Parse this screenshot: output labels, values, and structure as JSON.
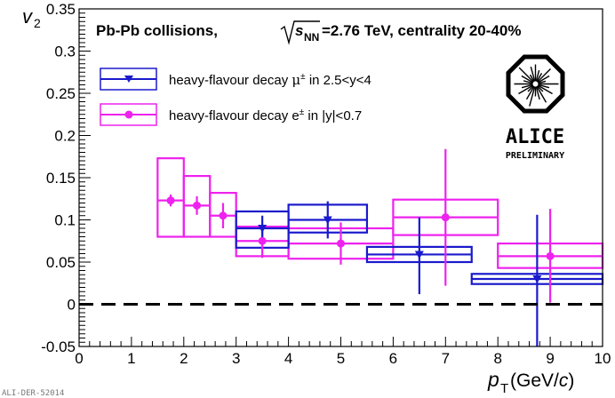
{
  "chart_data": {
    "type": "scatter",
    "title_parts": {
      "prefix": "Pb-Pb collisions,",
      "sqrt": "s",
      "sub": "NN",
      "suffix": "=2.76 TeV, centrality 20-40%"
    },
    "xlabel": {
      "symbol": "p",
      "sub": "T",
      "unit_open": " (GeV/",
      "unit_c": "c",
      "unit_close": ")"
    },
    "ylabel": {
      "symbol": "v",
      "sub": "2"
    },
    "xlim": [
      0,
      10
    ],
    "ylim": [
      -0.05,
      0.35
    ],
    "xticks": [
      0,
      1,
      2,
      3,
      4,
      5,
      6,
      7,
      8,
      9,
      10
    ],
    "xtick_labels": [
      "0",
      "1",
      "2",
      "3",
      "4",
      "5",
      "6",
      "7",
      "8",
      "9",
      "10"
    ],
    "yticks": [
      -0.05,
      0,
      0.05,
      0.1,
      0.15,
      0.2,
      0.25,
      0.3,
      0.35
    ],
    "ytick_labels": [
      "-0.05",
      "0",
      "0.05",
      "0.1",
      "0.15",
      "0.2",
      "0.25",
      "0.3",
      "0.35"
    ],
    "reference_line": {
      "y": 0,
      "style": "dashed"
    },
    "series": [
      {
        "name": "heavy-flavour decay μ± in 2.5<y<4",
        "legend_parts": [
          "heavy-flavour decay ",
          "μ",
          "±",
          " in 2.5<y<4"
        ],
        "color": "#1a1acc",
        "marker": "triangle-down",
        "points": [
          {
            "x": 3.5,
            "xlo": 3.0,
            "xhi": 4.0,
            "y": 0.09,
            "stat_lo": 0.075,
            "stat_hi": 0.105,
            "sys_lo": 0.067,
            "sys_hi": 0.11
          },
          {
            "x": 4.75,
            "xlo": 4.0,
            "xhi": 5.5,
            "y": 0.1,
            "stat_lo": 0.078,
            "stat_hi": 0.122,
            "sys_lo": 0.085,
            "sys_hi": 0.118
          },
          {
            "x": 6.5,
            "xlo": 5.5,
            "xhi": 7.5,
            "y": 0.059,
            "stat_lo": 0.012,
            "stat_hi": 0.103,
            "sys_lo": 0.05,
            "sys_hi": 0.068
          },
          {
            "x": 8.75,
            "xlo": 7.5,
            "xhi": 10.0,
            "y": 0.03,
            "stat_lo": -0.05,
            "stat_hi": 0.106,
            "sys_lo": 0.024,
            "sys_hi": 0.036
          }
        ]
      },
      {
        "name": "heavy-flavour decay e± in |y|<0.7",
        "legend_parts": [
          "heavy-flavour decay ",
          "e",
          "±",
          " in |y|<0.7"
        ],
        "color": "#ee22ee",
        "marker": "circle",
        "points": [
          {
            "x": 1.75,
            "xlo": 1.5,
            "xhi": 2.0,
            "y": 0.123,
            "stat_lo": 0.116,
            "stat_hi": 0.13,
            "sys_lo": 0.08,
            "sys_hi": 0.173
          },
          {
            "x": 2.25,
            "xlo": 2.0,
            "xhi": 2.5,
            "y": 0.117,
            "stat_lo": 0.106,
            "stat_hi": 0.128,
            "sys_lo": 0.08,
            "sys_hi": 0.152
          },
          {
            "x": 2.75,
            "xlo": 2.5,
            "xhi": 3.0,
            "y": 0.105,
            "stat_lo": 0.09,
            "stat_hi": 0.12,
            "sys_lo": 0.08,
            "sys_hi": 0.132
          },
          {
            "x": 3.5,
            "xlo": 3.0,
            "xhi": 4.0,
            "y": 0.075,
            "stat_lo": 0.055,
            "stat_hi": 0.095,
            "sys_lo": 0.057,
            "sys_hi": 0.092
          },
          {
            "x": 5.0,
            "xlo": 4.0,
            "xhi": 6.0,
            "y": 0.072,
            "stat_lo": 0.047,
            "stat_hi": 0.097,
            "sys_lo": 0.054,
            "sys_hi": 0.09
          },
          {
            "x": 7.0,
            "xlo": 6.0,
            "xhi": 8.0,
            "y": 0.103,
            "stat_lo": 0.022,
            "stat_hi": 0.184,
            "sys_lo": 0.082,
            "sys_hi": 0.124
          },
          {
            "x": 9.0,
            "xlo": 8.0,
            "xhi": 10.0,
            "y": 0.057,
            "stat_lo": 0.002,
            "stat_hi": 0.113,
            "sys_lo": 0.043,
            "sys_hi": 0.072
          }
        ]
      }
    ]
  },
  "logo": {
    "name": "ALICE",
    "status": "PRELIMINARY"
  },
  "footer": {
    "tag": "ALI-DER-52014"
  }
}
